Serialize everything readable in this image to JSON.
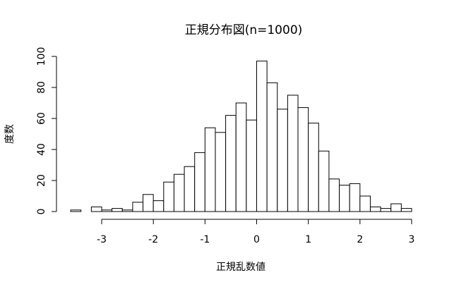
{
  "chart_data": {
    "type": "bar",
    "title": "正規分布図(n=1000)",
    "xlabel": "正規乱数値",
    "ylabel": "度数",
    "bin_width": 0.2,
    "bin_edges_start": -3.6,
    "values": [
      1,
      0,
      3,
      1,
      2,
      1,
      6,
      11,
      7,
      19,
      24,
      29,
      38,
      54,
      51,
      62,
      70,
      59,
      97,
      83,
      66,
      75,
      67,
      57,
      39,
      21,
      17,
      18,
      10,
      3,
      2,
      5,
      2
    ],
    "xlim": [
      -3.6,
      3.0
    ],
    "ylim": [
      0,
      100
    ],
    "x_ticks": [
      -3,
      -2,
      -1,
      0,
      1,
      2,
      3
    ],
    "x_tick_labels": [
      "-3",
      "-2",
      "-1",
      "0",
      "1",
      "2",
      "3"
    ],
    "y_ticks": [
      0,
      20,
      40,
      60,
      80,
      100
    ],
    "y_tick_labels": [
      "0",
      "20",
      "40",
      "60",
      "80",
      "100"
    ],
    "grid": false,
    "colors": {
      "bar_fill": "#ffffff",
      "bar_stroke": "#000000"
    }
  }
}
